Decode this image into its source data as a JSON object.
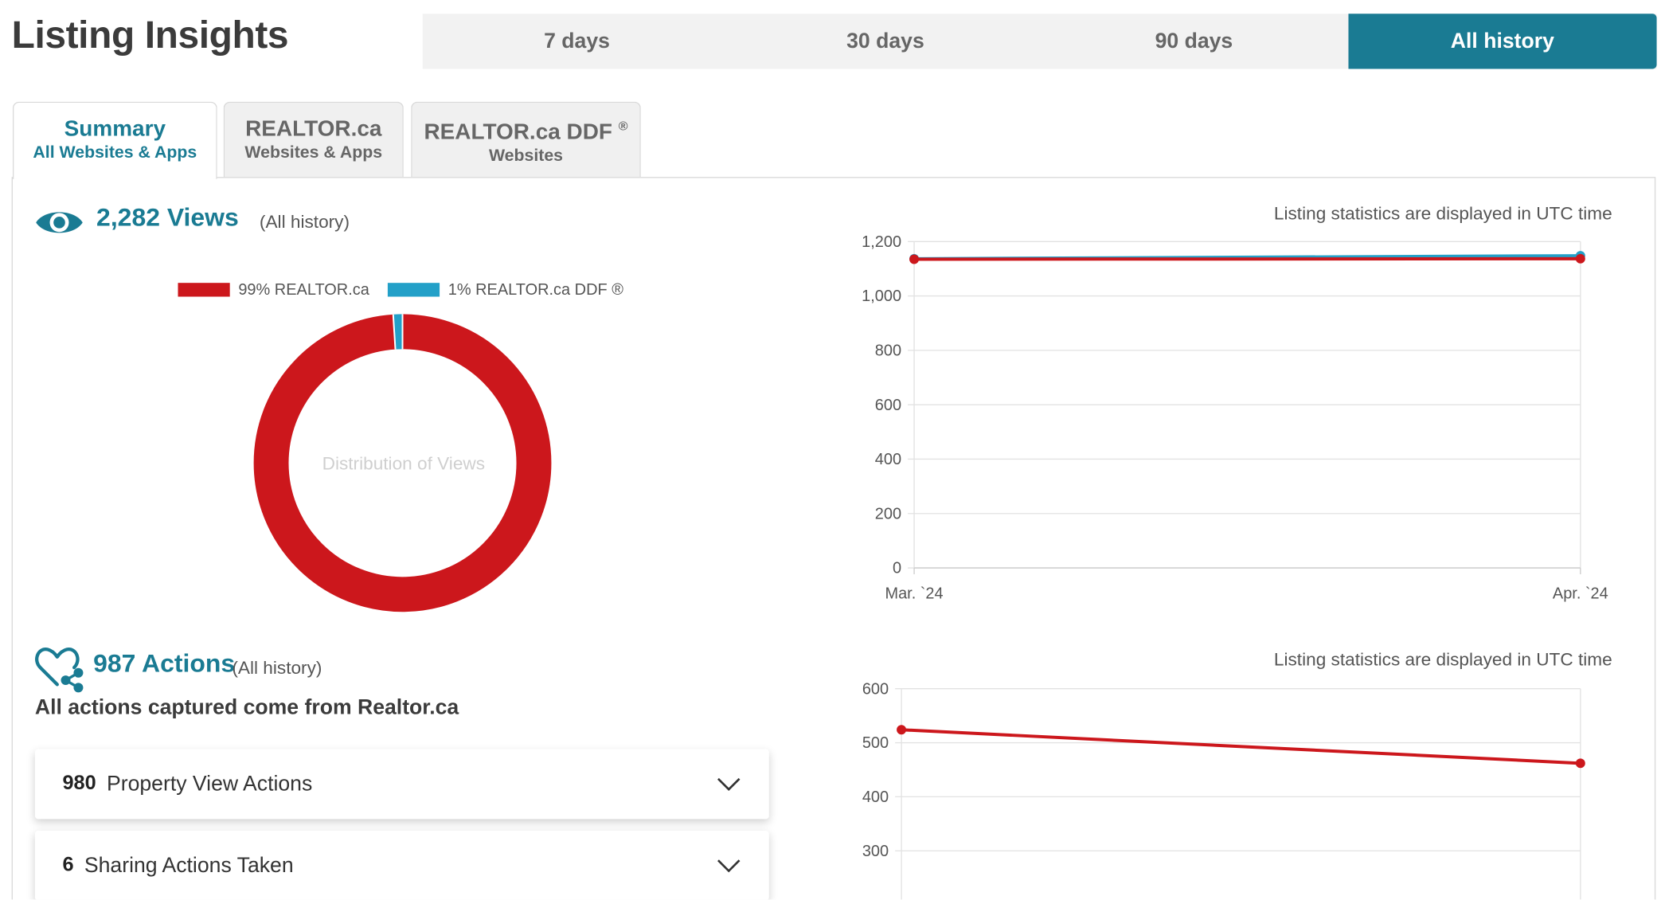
{
  "header": {
    "title": "Listing Insights",
    "ranges": [
      "7 days",
      "30 days",
      "90 days",
      "All history"
    ],
    "active_range": "All history"
  },
  "tabs": [
    {
      "title": "Summary",
      "sub": "All Websites & Apps",
      "active": true
    },
    {
      "title": "REALTOR.ca",
      "sub": "Websites & Apps",
      "active": false
    },
    {
      "title": "REALTOR.ca DDF",
      "title_sup": "®",
      "sub": "Websites",
      "active": false
    }
  ],
  "views": {
    "count_label": "2,282 Views",
    "period": "(All history)",
    "utc_note": "Listing statistics are displayed in UTC time",
    "icon": "eye-icon"
  },
  "actions": {
    "count_label": "987 Actions",
    "period": "(All history)",
    "utc_note": "Listing statistics are displayed in UTC time",
    "subtitle": "All actions captured come from Realtor.ca",
    "icon": "heart-share-icon",
    "items": [
      {
        "count": "980",
        "label": "Property View Actions",
        "icon": "chevron-down-icon"
      },
      {
        "count": "6",
        "label": "Sharing Actions Taken",
        "icon": "chevron-down-icon"
      }
    ]
  },
  "colors": {
    "accent": "#1a7b93",
    "realtor_red": "#cc171c",
    "ddf_blue": "#23a0c8",
    "range_bg": "#f2f2f2"
  },
  "chart_data": [
    {
      "type": "pie",
      "variant": "donut",
      "center_label": "Distribution of Views",
      "legend_placement": "top",
      "slices": [
        {
          "label": "99% REALTOR.ca",
          "value": 99,
          "color": "#cc171c"
        },
        {
          "label": "1% REALTOR.ca DDF ®",
          "value": 1,
          "color": "#23a0c8"
        }
      ]
    },
    {
      "type": "line",
      "x": [
        "Mar. `24",
        "Apr. `24"
      ],
      "yticks": [
        "0",
        "200",
        "400",
        "600",
        "800",
        "1,000",
        "1,200"
      ],
      "ylim": [
        0,
        1200
      ],
      "grid": true,
      "series": [
        {
          "values": [
            1137,
            1148
          ],
          "color": "#23a0c8"
        },
        {
          "values": [
            1135,
            1137
          ],
          "color": "#cc171c"
        }
      ]
    },
    {
      "type": "line",
      "yticks": [
        "300",
        "400",
        "500",
        "600"
      ],
      "ylim": [
        200,
        600
      ],
      "grid": true,
      "series": [
        {
          "values": [
            524,
            462
          ],
          "color": "#cc171c"
        }
      ]
    }
  ]
}
